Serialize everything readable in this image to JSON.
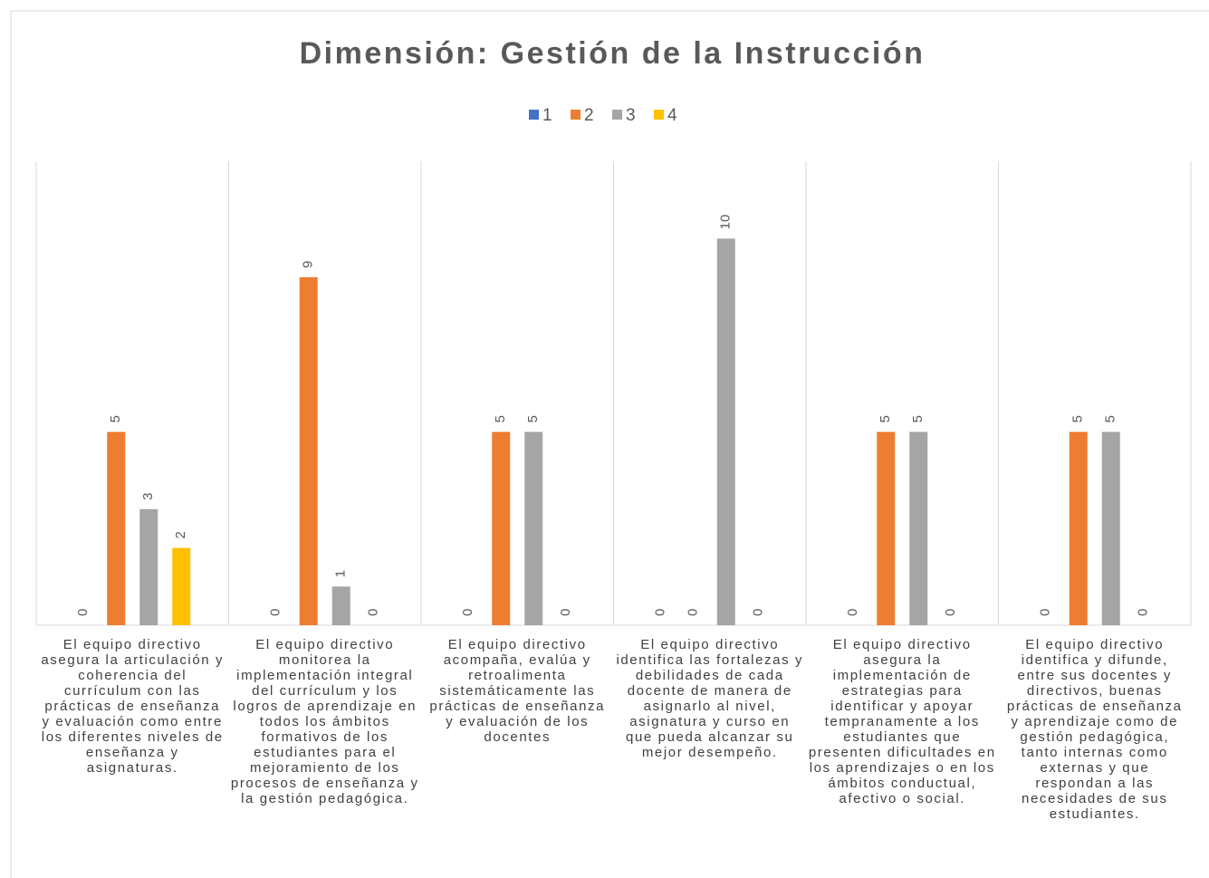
{
  "chart_data": {
    "type": "bar",
    "title": "Dimensión: Gestión de la Instrucción",
    "categories": [
      "El equipo directivo asegura la articulación y coherencia del currículum con las prácticas de enseñanza y evaluación como entre los diferentes niveles de enseñanza y asignaturas.",
      "El equipo directivo monitorea la implementación integral del currículum y los logros de aprendizaje en todos los ámbitos formativos de los estudiantes para el mejoramiento de los procesos de enseñanza y la gestión pedagógica.",
      "El equipo directivo acompaña, evalúa y retroalimenta sistemáticamente las prácticas de enseñanza y evaluación de los docentes",
      "El equipo directivo identifica las fortalezas y debilidades de cada docente de manera de asignarlo al nivel, asignatura y curso en que pueda alcanzar su mejor desempeño.",
      "El equipo directivo asegura la implementación de estrategias para identificar y apoyar tempranamente a los estudiantes que presenten dificultades en los aprendizajes o en los ámbitos conductual, afectivo o social.",
      "El equipo directivo identifica y difunde, entre sus docentes y directivos, buenas prácticas de enseñanza y aprendizaje como de gestión pedagógica, tanto internas como externas y que respondan a las necesidades de sus estudiantes."
    ],
    "series": [
      {
        "name": "1",
        "color": "#4472c4",
        "values": [
          0,
          0,
          0,
          0,
          0,
          0
        ]
      },
      {
        "name": "2",
        "color": "#ed7d31",
        "values": [
          5,
          9,
          5,
          0,
          5,
          5
        ]
      },
      {
        "name": "3",
        "color": "#a5a5a5",
        "values": [
          3,
          1,
          5,
          10,
          5,
          5
        ]
      },
      {
        "name": "4",
        "color": "#ffc000",
        "values": [
          2,
          0,
          0,
          0,
          0,
          0
        ]
      }
    ],
    "ylim": [
      0,
      12
    ],
    "legend": "top"
  }
}
